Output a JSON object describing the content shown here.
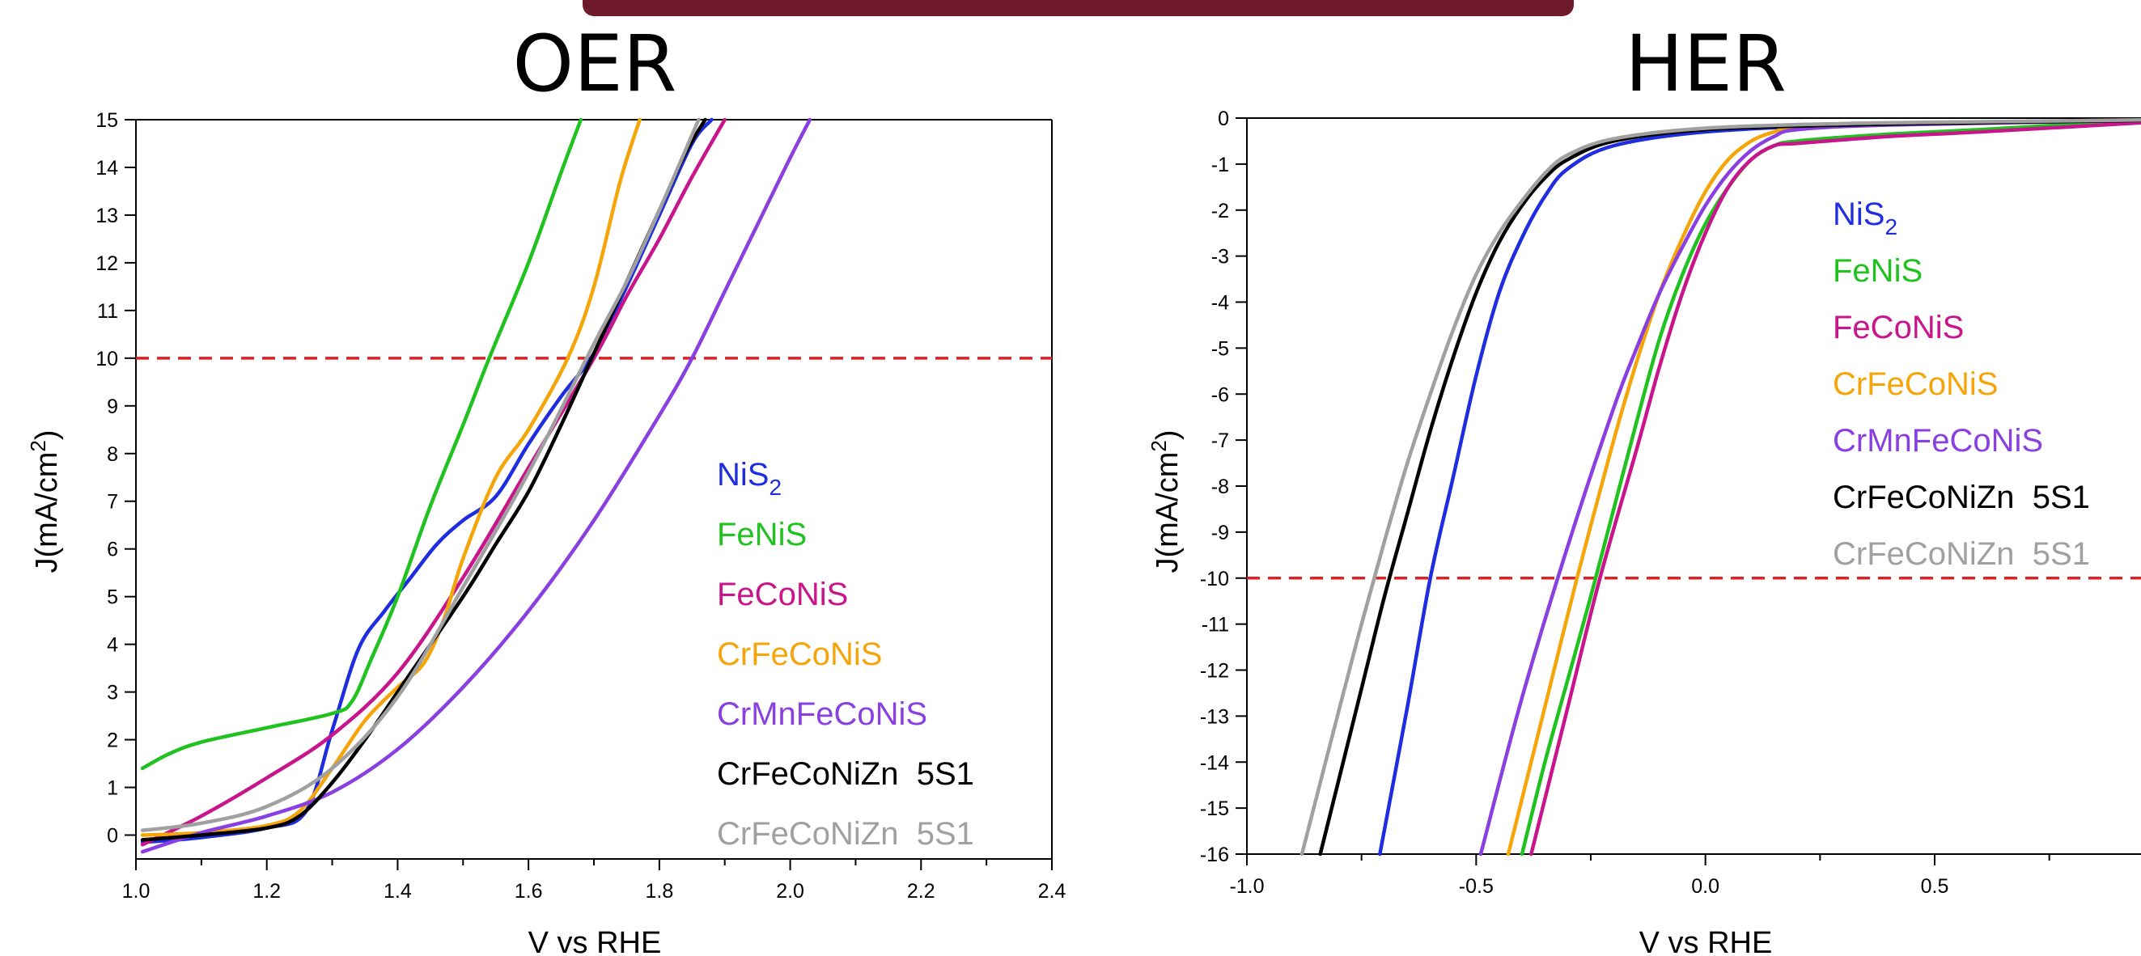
{
  "colors": {
    "NiS2": "#1f2de0",
    "FeNiS": "#1fc21f",
    "FeCoNiS": "#c8158c",
    "CrFeCoNiS": "#f5a50a",
    "CrMnFeCoNiS": "#8a3fe0",
    "CrFeCoNiZn_black": "#000000",
    "CrFeCoNiZn_gray": "#a0a0a0",
    "reference": "#e02020"
  },
  "chart_data": [
    {
      "type": "line",
      "title": "OER",
      "xlabel": "V vs RHE",
      "ylabel_main": "J(mA/cm",
      "ylabel_sup": "2",
      "ylabel_close": ")",
      "xlim": [
        1.0,
        2.4
      ],
      "ylim": [
        -0.5,
        15
      ],
      "xticks": [
        "1.0",
        "1.2",
        "1.4",
        "1.6",
        "1.8",
        "2.0",
        "2.2",
        "2.4"
      ],
      "yticks": [
        "0",
        "1",
        "2",
        "3",
        "4",
        "5",
        "6",
        "7",
        "8",
        "9",
        "10",
        "11",
        "12",
        "13",
        "14",
        "15"
      ],
      "reference_line": {
        "y": 10,
        "style": "dashed"
      },
      "legend_position": "center-right",
      "legend": [
        {
          "main": "NiS",
          "sub": "2",
          "color": "NiS2"
        },
        {
          "main": "FeNiS",
          "sub": "",
          "color": "FeNiS"
        },
        {
          "main": "FeCoNiS",
          "sub": "",
          "color": "FeCoNiS"
        },
        {
          "main": "CrFeCoNiS",
          "sub": "",
          "color": "CrFeCoNiS"
        },
        {
          "main": "CrMnFeCoNiS",
          "sub": "",
          "color": "CrMnFeCoNiS"
        },
        {
          "main": "CrFeCoNiZn  5S1",
          "sub": "",
          "color": "CrFeCoNiZn_black"
        },
        {
          "main": "CrFeCoNiZn  5S1",
          "sub": "",
          "color": "CrFeCoNiZn_gray"
        }
      ],
      "series": [
        {
          "key": "NiS2",
          "color": "NiS2",
          "x": [
            1.01,
            1.1,
            1.2,
            1.26,
            1.3,
            1.34,
            1.38,
            1.42,
            1.46,
            1.5,
            1.55,
            1.6,
            1.65,
            1.7,
            1.75,
            1.8,
            1.85,
            1.88
          ],
          "y": [
            -0.15,
            -0.05,
            0.15,
            0.5,
            2.2,
            3.9,
            4.7,
            5.4,
            6.1,
            6.6,
            7.1,
            8.2,
            9.2,
            10.1,
            11.5,
            13.0,
            14.5,
            15.0
          ]
        },
        {
          "key": "FeNiS",
          "color": "FeNiS",
          "x": [
            1.01,
            1.05,
            1.1,
            1.2,
            1.3,
            1.33,
            1.36,
            1.4,
            1.45,
            1.5,
            1.54,
            1.6,
            1.65,
            1.68
          ],
          "y": [
            1.4,
            1.7,
            1.95,
            2.25,
            2.55,
            2.8,
            3.7,
            5.0,
            6.9,
            8.6,
            10.0,
            12.0,
            13.9,
            15.0
          ]
        },
        {
          "key": "FeCoNiS",
          "color": "FeCoNiS",
          "x": [
            1.01,
            1.1,
            1.2,
            1.3,
            1.4,
            1.5,
            1.6,
            1.7,
            1.75,
            1.8,
            1.85,
            1.9
          ],
          "y": [
            -0.2,
            0.4,
            1.2,
            2.1,
            3.4,
            5.4,
            7.7,
            10.0,
            11.3,
            12.5,
            13.8,
            15.0
          ]
        },
        {
          "key": "CrFeCoNiS",
          "color": "CrFeCoNiS",
          "x": [
            1.01,
            1.1,
            1.2,
            1.25,
            1.3,
            1.35,
            1.4,
            1.44,
            1.47,
            1.5,
            1.55,
            1.6,
            1.66,
            1.7,
            1.74,
            1.77
          ],
          "y": [
            0.0,
            0.05,
            0.2,
            0.5,
            1.4,
            2.4,
            3.1,
            3.6,
            4.5,
            5.8,
            7.5,
            8.5,
            10.0,
            11.5,
            13.7,
            15.0
          ]
        },
        {
          "key": "CrMnFeCoNiS",
          "color": "CrMnFeCoNiS",
          "x": [
            1.01,
            1.1,
            1.2,
            1.3,
            1.4,
            1.5,
            1.6,
            1.7,
            1.8,
            1.85,
            1.9,
            1.95,
            2.0,
            2.03
          ],
          "y": [
            -0.35,
            0.05,
            0.4,
            0.9,
            1.8,
            3.1,
            4.7,
            6.6,
            8.8,
            10.0,
            11.4,
            12.8,
            14.2,
            15.0
          ]
        },
        {
          "key": "CrFeCoNiZn_black",
          "color": "CrFeCoNiZn_black",
          "x": [
            1.01,
            1.1,
            1.2,
            1.25,
            1.3,
            1.35,
            1.4,
            1.5,
            1.55,
            1.6,
            1.65,
            1.7,
            1.75,
            1.8,
            1.84,
            1.87
          ],
          "y": [
            -0.1,
            0.0,
            0.15,
            0.4,
            1.1,
            2.0,
            3.0,
            5.0,
            6.1,
            7.2,
            8.6,
            10.1,
            11.6,
            13.1,
            14.3,
            15.0
          ]
        },
        {
          "key": "CrFeCoNiZn_gray",
          "color": "CrFeCoNiZn_gray",
          "x": [
            1.01,
            1.1,
            1.2,
            1.3,
            1.4,
            1.5,
            1.6,
            1.7,
            1.75,
            1.8,
            1.86
          ],
          "y": [
            0.1,
            0.25,
            0.6,
            1.4,
            2.9,
            5.2,
            7.6,
            10.3,
            11.6,
            13.1,
            15.0
          ]
        }
      ]
    },
    {
      "type": "line",
      "title": "HER",
      "xlabel": "V vs RHE",
      "ylabel_main": "J(mA/cm",
      "ylabel_sup": "2",
      "ylabel_close": ")",
      "xlim": [
        -1.0,
        0.95
      ],
      "ylim": [
        -16,
        0
      ],
      "xticks": [
        "-1.0",
        "-0.5",
        "0.0",
        "0.5"
      ],
      "xtick_values": [
        -1.0,
        -0.5,
        0.0,
        0.5
      ],
      "yticks": [
        "0",
        "-1",
        "-2",
        "-3",
        "-4",
        "-5",
        "-6",
        "-7",
        "-8",
        "-9",
        "-10",
        "-11",
        "-12",
        "-13",
        "-14",
        "-15",
        "-16"
      ],
      "reference_line": {
        "y": -10,
        "style": "dashed"
      },
      "legend_position": "top-right",
      "legend": [
        {
          "main": "NiS",
          "sub": "2",
          "color": "NiS2"
        },
        {
          "main": "FeNiS",
          "sub": "",
          "color": "FeNiS"
        },
        {
          "main": "FeCoNiS",
          "sub": "",
          "color": "FeCoNiS"
        },
        {
          "main": "CrFeCoNiS",
          "sub": "",
          "color": "CrFeCoNiS"
        },
        {
          "main": "CrMnFeCoNiS",
          "sub": "",
          "color": "CrMnFeCoNiS"
        },
        {
          "main": "CrFeCoNiZn  5S1",
          "sub": "",
          "color": "CrFeCoNiZn_black"
        },
        {
          "main": "CrFeCoNiZn  5S1",
          "sub": "",
          "color": "CrFeCoNiZn_gray"
        }
      ],
      "series": [
        {
          "key": "NiS2",
          "color": "NiS2",
          "x": [
            -0.71,
            -0.65,
            -0.6,
            -0.55,
            -0.5,
            -0.45,
            -0.4,
            -0.35,
            -0.3,
            -0.2,
            0.0,
            0.3,
            0.6,
            0.95
          ],
          "y": [
            -16.0,
            -12.8,
            -10.0,
            -7.8,
            -5.6,
            -3.8,
            -2.6,
            -1.7,
            -1.1,
            -0.6,
            -0.3,
            -0.15,
            -0.1,
            -0.05
          ]
        },
        {
          "key": "FeNiS",
          "color": "FeNiS",
          "x": [
            -0.4,
            -0.35,
            -0.3,
            -0.25,
            -0.2,
            -0.15,
            -0.1,
            -0.05,
            0.0,
            0.05,
            0.1,
            0.15,
            0.2,
            0.4,
            0.6,
            0.95
          ],
          "y": [
            -16.0,
            -14.0,
            -12.2,
            -10.4,
            -8.5,
            -6.6,
            -4.8,
            -3.4,
            -2.3,
            -1.5,
            -0.9,
            -0.6,
            -0.5,
            -0.35,
            -0.25,
            -0.05
          ]
        },
        {
          "key": "FeCoNiS",
          "color": "FeCoNiS",
          "x": [
            -0.38,
            -0.3,
            -0.23,
            -0.15,
            -0.1,
            -0.05,
            0.0,
            0.05,
            0.1,
            0.15,
            0.2,
            0.4,
            0.6,
            0.95
          ],
          "y": [
            -16.0,
            -12.8,
            -10.0,
            -7.2,
            -5.4,
            -3.8,
            -2.5,
            -1.5,
            -0.9,
            -0.6,
            -0.55,
            -0.4,
            -0.3,
            -0.1
          ]
        },
        {
          "key": "CrFeCoNiS",
          "color": "CrFeCoNiS",
          "x": [
            -0.43,
            -0.35,
            -0.28,
            -0.2,
            -0.15,
            -0.1,
            -0.05,
            0.0,
            0.05,
            0.1,
            0.15,
            0.2,
            0.4,
            0.95
          ],
          "y": [
            -16.0,
            -12.8,
            -10.0,
            -7.0,
            -5.3,
            -3.8,
            -2.6,
            -1.6,
            -0.9,
            -0.5,
            -0.3,
            -0.2,
            -0.12,
            -0.05
          ]
        },
        {
          "key": "CrMnFeCoNiS",
          "color": "CrMnFeCoNiS",
          "x": [
            -0.49,
            -0.4,
            -0.3,
            -0.2,
            -0.15,
            -0.1,
            -0.05,
            0.0,
            0.05,
            0.1,
            0.15,
            0.2,
            0.4,
            0.95
          ],
          "y": [
            -16.0,
            -12.6,
            -9.3,
            -6.3,
            -5.0,
            -3.8,
            -2.8,
            -1.9,
            -1.2,
            -0.7,
            -0.4,
            -0.25,
            -0.15,
            -0.05
          ]
        },
        {
          "key": "CrFeCoNiZn_black",
          "color": "CrFeCoNiZn_black",
          "x": [
            -0.84,
            -0.75,
            -0.7,
            -0.65,
            -0.6,
            -0.55,
            -0.5,
            -0.45,
            -0.4,
            -0.35,
            -0.3,
            -0.2,
            0.0,
            0.3,
            0.6,
            0.95
          ],
          "y": [
            -16.0,
            -12.4,
            -10.4,
            -8.6,
            -6.8,
            -5.2,
            -3.8,
            -2.7,
            -1.9,
            -1.3,
            -0.9,
            -0.5,
            -0.25,
            -0.15,
            -0.1,
            -0.05
          ]
        },
        {
          "key": "CrFeCoNiZn_gray",
          "color": "CrFeCoNiZn_gray",
          "x": [
            -0.88,
            -0.8,
            -0.75,
            -0.7,
            -0.65,
            -0.6,
            -0.55,
            -0.5,
            -0.45,
            -0.4,
            -0.35,
            -0.3,
            -0.2,
            0.0,
            0.3,
            0.6,
            0.95
          ],
          "y": [
            -16.0,
            -12.9,
            -11.0,
            -9.2,
            -7.5,
            -6.0,
            -4.6,
            -3.4,
            -2.5,
            -1.8,
            -1.2,
            -0.8,
            -0.45,
            -0.22,
            -0.12,
            -0.08,
            -0.04
          ]
        }
      ]
    }
  ]
}
